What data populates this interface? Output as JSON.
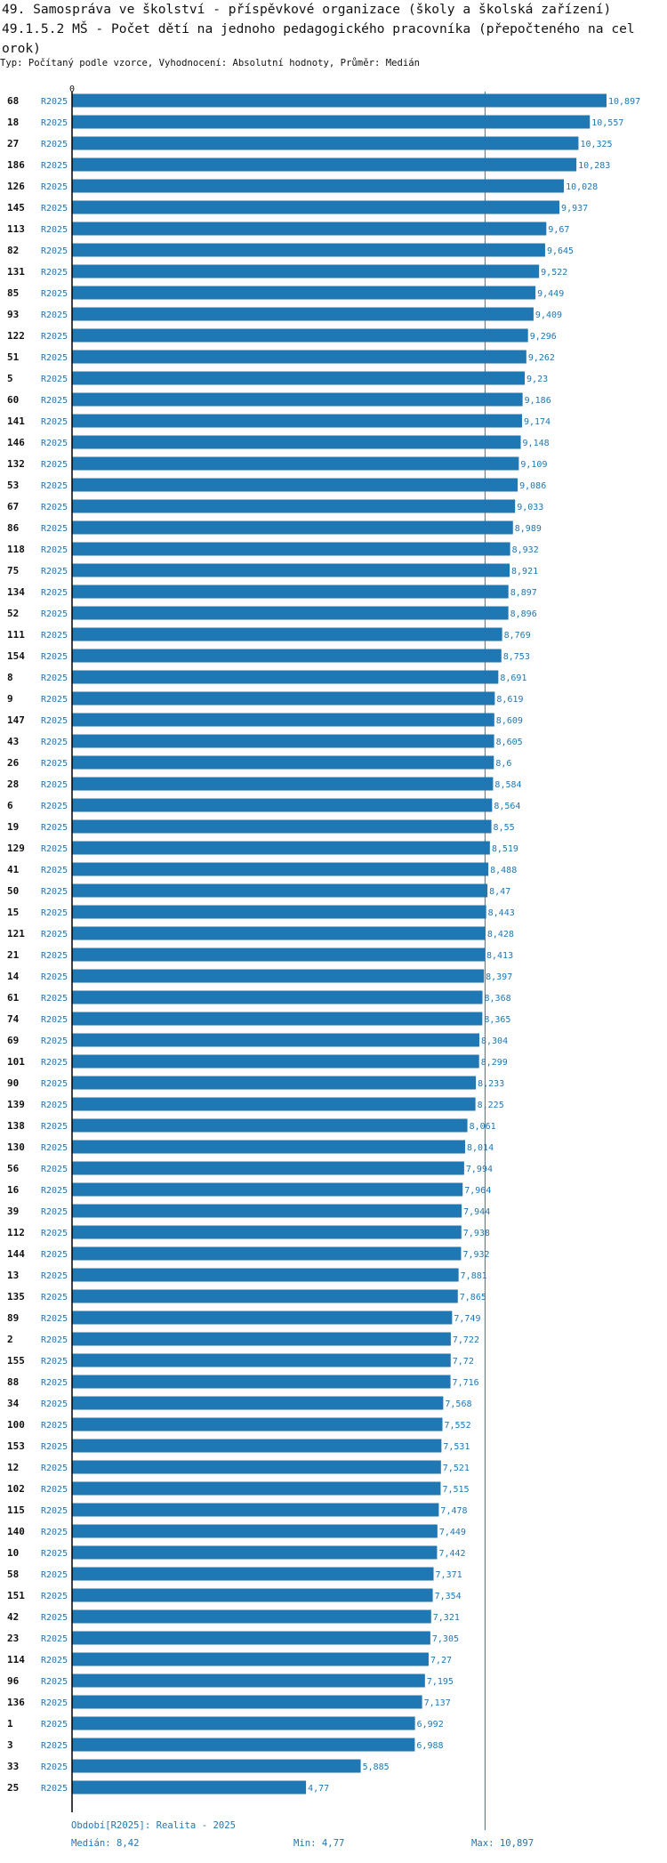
{
  "header": {
    "title_line1": "49. Samospráva ve školství - příspěvkové organizace (školy a školská zařízení)",
    "title_line2": "49.1.5.2 MŠ - Počet dětí na jednoho pedagogického pracovníka (přepočteného na cel",
    "title_line3": "orok)",
    "subtitle": "Typ: Počítaný podle vzorce, Vyhodnocení: Absolutní hodnoty, Průměr: Medián"
  },
  "chart_data": {
    "type": "bar",
    "orientation": "horizontal",
    "axis_label": "0",
    "xlim": [
      0,
      10.897
    ],
    "median_line": 8.42,
    "series_label": "R2025",
    "bar_color": "#1f77b4",
    "rows": [
      {
        "id": "68",
        "value": 10.897,
        "label": "10,897"
      },
      {
        "id": "18",
        "value": 10.557,
        "label": "10,557"
      },
      {
        "id": "27",
        "value": 10.325,
        "label": "10,325"
      },
      {
        "id": "186",
        "value": 10.283,
        "label": "10,283"
      },
      {
        "id": "126",
        "value": 10.028,
        "label": "10,028"
      },
      {
        "id": "145",
        "value": 9.937,
        "label": "9,937"
      },
      {
        "id": "113",
        "value": 9.67,
        "label": "9,67"
      },
      {
        "id": "82",
        "value": 9.645,
        "label": "9,645"
      },
      {
        "id": "131",
        "value": 9.522,
        "label": "9,522"
      },
      {
        "id": "85",
        "value": 9.449,
        "label": "9,449"
      },
      {
        "id": "93",
        "value": 9.409,
        "label": "9,409"
      },
      {
        "id": "122",
        "value": 9.296,
        "label": "9,296"
      },
      {
        "id": "51",
        "value": 9.262,
        "label": "9,262"
      },
      {
        "id": "5",
        "value": 9.23,
        "label": "9,23"
      },
      {
        "id": "60",
        "value": 9.186,
        "label": "9,186"
      },
      {
        "id": "141",
        "value": 9.174,
        "label": "9,174"
      },
      {
        "id": "146",
        "value": 9.148,
        "label": "9,148"
      },
      {
        "id": "132",
        "value": 9.109,
        "label": "9,109"
      },
      {
        "id": "53",
        "value": 9.086,
        "label": "9,086"
      },
      {
        "id": "67",
        "value": 9.033,
        "label": "9,033"
      },
      {
        "id": "86",
        "value": 8.989,
        "label": "8,989"
      },
      {
        "id": "118",
        "value": 8.932,
        "label": "8,932"
      },
      {
        "id": "75",
        "value": 8.921,
        "label": "8,921"
      },
      {
        "id": "134",
        "value": 8.897,
        "label": "8,897"
      },
      {
        "id": "52",
        "value": 8.896,
        "label": "8,896"
      },
      {
        "id": "111",
        "value": 8.769,
        "label": "8,769"
      },
      {
        "id": "154",
        "value": 8.753,
        "label": "8,753"
      },
      {
        "id": "8",
        "value": 8.691,
        "label": "8,691"
      },
      {
        "id": "9",
        "value": 8.619,
        "label": "8,619"
      },
      {
        "id": "147",
        "value": 8.609,
        "label": "8,609"
      },
      {
        "id": "43",
        "value": 8.605,
        "label": "8,605"
      },
      {
        "id": "26",
        "value": 8.6,
        "label": "8,6"
      },
      {
        "id": "28",
        "value": 8.584,
        "label": "8,584"
      },
      {
        "id": "6",
        "value": 8.564,
        "label": "8,564"
      },
      {
        "id": "19",
        "value": 8.55,
        "label": "8,55"
      },
      {
        "id": "129",
        "value": 8.519,
        "label": "8,519"
      },
      {
        "id": "41",
        "value": 8.488,
        "label": "8,488"
      },
      {
        "id": "50",
        "value": 8.47,
        "label": "8,47"
      },
      {
        "id": "15",
        "value": 8.443,
        "label": "8,443"
      },
      {
        "id": "121",
        "value": 8.428,
        "label": "8,428"
      },
      {
        "id": "21",
        "value": 8.413,
        "label": "8,413"
      },
      {
        "id": "14",
        "value": 8.397,
        "label": "8,397"
      },
      {
        "id": "61",
        "value": 8.368,
        "label": "8,368"
      },
      {
        "id": "74",
        "value": 8.365,
        "label": "8,365"
      },
      {
        "id": "69",
        "value": 8.304,
        "label": "8,304"
      },
      {
        "id": "101",
        "value": 8.299,
        "label": "8,299"
      },
      {
        "id": "90",
        "value": 8.233,
        "label": "8,233"
      },
      {
        "id": "139",
        "value": 8.225,
        "label": "8,225"
      },
      {
        "id": "138",
        "value": 8.061,
        "label": "8,061"
      },
      {
        "id": "130",
        "value": 8.014,
        "label": "8,014"
      },
      {
        "id": "56",
        "value": 7.994,
        "label": "7,994"
      },
      {
        "id": "16",
        "value": 7.964,
        "label": "7,964"
      },
      {
        "id": "39",
        "value": 7.944,
        "label": "7,944"
      },
      {
        "id": "112",
        "value": 7.938,
        "label": "7,938"
      },
      {
        "id": "144",
        "value": 7.932,
        "label": "7,932"
      },
      {
        "id": "13",
        "value": 7.881,
        "label": "7,881"
      },
      {
        "id": "135",
        "value": 7.865,
        "label": "7,865"
      },
      {
        "id": "89",
        "value": 7.749,
        "label": "7,749"
      },
      {
        "id": "2",
        "value": 7.722,
        "label": "7,722"
      },
      {
        "id": "155",
        "value": 7.72,
        "label": "7,72"
      },
      {
        "id": "88",
        "value": 7.716,
        "label": "7,716"
      },
      {
        "id": "34",
        "value": 7.568,
        "label": "7,568"
      },
      {
        "id": "100",
        "value": 7.552,
        "label": "7,552"
      },
      {
        "id": "153",
        "value": 7.531,
        "label": "7,531"
      },
      {
        "id": "12",
        "value": 7.521,
        "label": "7,521"
      },
      {
        "id": "102",
        "value": 7.515,
        "label": "7,515"
      },
      {
        "id": "115",
        "value": 7.478,
        "label": "7,478"
      },
      {
        "id": "140",
        "value": 7.449,
        "label": "7,449"
      },
      {
        "id": "10",
        "value": 7.442,
        "label": "7,442"
      },
      {
        "id": "58",
        "value": 7.371,
        "label": "7,371"
      },
      {
        "id": "151",
        "value": 7.354,
        "label": "7,354"
      },
      {
        "id": "42",
        "value": 7.321,
        "label": "7,321"
      },
      {
        "id": "23",
        "value": 7.305,
        "label": "7,305"
      },
      {
        "id": "114",
        "value": 7.27,
        "label": "7,27"
      },
      {
        "id": "96",
        "value": 7.195,
        "label": "7,195"
      },
      {
        "id": "136",
        "value": 7.137,
        "label": "7,137"
      },
      {
        "id": "1",
        "value": 6.992,
        "label": "6,992"
      },
      {
        "id": "3",
        "value": 6.988,
        "label": "6,988"
      },
      {
        "id": "33",
        "value": 5.885,
        "label": "5,885"
      },
      {
        "id": "25",
        "value": 4.77,
        "label": "4,77"
      }
    ]
  },
  "footer": {
    "period": "Období[R2025]: Realita - 2025",
    "median_label": "Medián:",
    "median_value": "8,42",
    "min_label": "Min:",
    "min_value": "4,77",
    "max_label": "Max:",
    "max_value": "10,897"
  }
}
